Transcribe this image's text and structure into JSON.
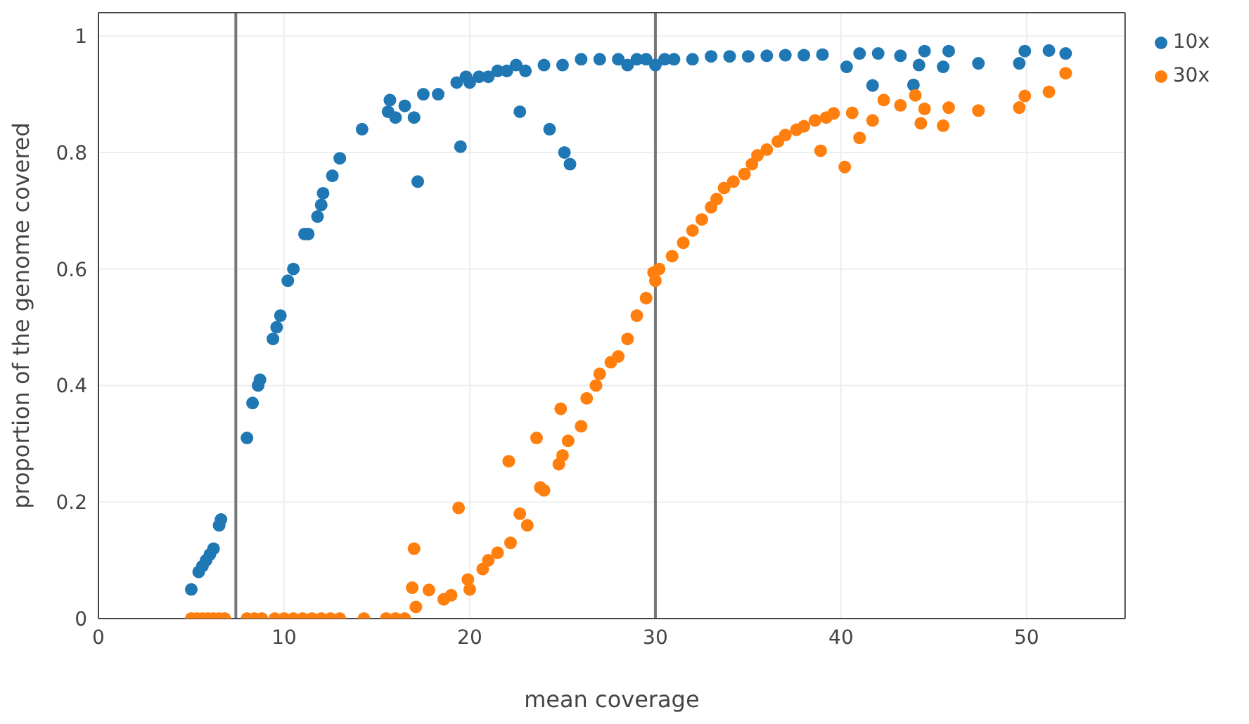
{
  "chart_data": {
    "type": "scatter",
    "xlabel": "mean coverage",
    "ylabel": "proportion of the genome covered",
    "xlim": [
      0,
      55.3
    ],
    "ylim": [
      0,
      1.04
    ],
    "xticks": [
      0,
      10,
      20,
      30,
      40,
      50
    ],
    "yticks": [
      0,
      0.2,
      0.4,
      0.6,
      0.8,
      1
    ],
    "grid": true,
    "legend": "top right",
    "marker": "circle",
    "ref_lines": [
      {
        "axis": "x",
        "value": 7.4,
        "color": "#777777"
      },
      {
        "axis": "x",
        "value": 30,
        "color": "#777777"
      }
    ],
    "series": [
      {
        "name": "10x",
        "color": "#1f77b4",
        "x": [
          5,
          5.4,
          5.6,
          5.8,
          6,
          6.2,
          6.5,
          6.6,
          8,
          8.3,
          8.6,
          8.7,
          9.4,
          9.6,
          9.8,
          10.2,
          10.5,
          11.1,
          11.3,
          11.8,
          12,
          12.1,
          12.6,
          13,
          14.2,
          15.6,
          15.7,
          16,
          16.5,
          17,
          17.2,
          17.5,
          18.3,
          19.3,
          19.5,
          19.8,
          20,
          20.5,
          21,
          21.5,
          22,
          22.5,
          22.7,
          23,
          24,
          24.3,
          25,
          25.1,
          25.4,
          26,
          27,
          28,
          28.5,
          29,
          29.5,
          30,
          30.5,
          31,
          32,
          33,
          34,
          35,
          36,
          37,
          38,
          39,
          40.3,
          41,
          41.7,
          42,
          43.2,
          43.9,
          44.2,
          44.5,
          45.5,
          45.8,
          47.4,
          49.6,
          49.9,
          51.2,
          52.1
        ],
        "values": [
          0.05,
          0.08,
          0.09,
          0.1,
          0.11,
          0.12,
          0.16,
          0.17,
          0.31,
          0.37,
          0.4,
          0.41,
          0.48,
          0.5,
          0.52,
          0.58,
          0.6,
          0.66,
          0.66,
          0.69,
          0.71,
          0.73,
          0.76,
          0.79,
          0.84,
          0.87,
          0.89,
          0.86,
          0.88,
          0.86,
          0.75,
          0.9,
          0.9,
          0.92,
          0.81,
          0.93,
          0.92,
          0.93,
          0.93,
          0.94,
          0.94,
          0.95,
          0.87,
          0.94,
          0.95,
          0.84,
          0.95,
          0.8,
          0.78,
          0.96,
          0.96,
          0.96,
          0.95,
          0.96,
          0.96,
          0.95,
          0.96,
          0.96,
          0.96,
          0.965,
          0.965,
          0.965,
          0.966,
          0.967,
          0.967,
          0.968,
          0.947,
          0.97,
          0.915,
          0.97,
          0.966,
          0.916,
          0.95,
          0.974,
          0.947,
          0.974,
          0.953,
          0.953,
          0.974,
          0.975,
          0.97
        ]
      },
      {
        "name": "30x",
        "color": "#ff7f0e",
        "x": [
          5,
          5.3,
          5.6,
          5.9,
          6.2,
          6.5,
          6.8,
          8,
          8.4,
          8.8,
          9.5,
          10,
          10.5,
          11,
          11.5,
          12,
          12.5,
          13,
          14.3,
          15.5,
          16,
          16.5,
          16.9,
          17,
          17.1,
          17.8,
          18.6,
          19,
          19.4,
          19.9,
          20,
          20.7,
          21,
          21.5,
          22.1,
          22.2,
          22.7,
          23.1,
          23.6,
          23.8,
          24,
          24.8,
          24.9,
          25,
          25.3,
          26,
          26.3,
          26.8,
          27,
          27.6,
          28,
          28.5,
          29,
          29.5,
          29.9,
          30,
          30.2,
          30.9,
          31.5,
          32,
          32.5,
          33,
          33.3,
          33.7,
          34.2,
          34.8,
          35.2,
          35.5,
          36,
          36.6,
          37,
          37.6,
          38,
          38.6,
          38.9,
          39.2,
          39.6,
          40.2,
          40.6,
          41,
          41.7,
          42.3,
          43.2,
          44,
          44.3,
          44.5,
          45.5,
          45.8,
          47.4,
          49.6,
          49.9,
          51.2,
          52.1
        ],
        "values": [
          0,
          0,
          0,
          0,
          0,
          0,
          0,
          0,
          0,
          0,
          0,
          0,
          0,
          0,
          0,
          0,
          0,
          0,
          0,
          0,
          0,
          0,
          0.053,
          0.12,
          0.02,
          0.049,
          0.033,
          0.04,
          0.19,
          0.067,
          0.05,
          0.085,
          0.1,
          0.113,
          0.27,
          0.13,
          0.18,
          0.16,
          0.31,
          0.225,
          0.22,
          0.265,
          0.36,
          0.28,
          0.305,
          0.33,
          0.378,
          0.4,
          0.42,
          0.44,
          0.45,
          0.48,
          0.52,
          0.55,
          0.594,
          0.58,
          0.6,
          0.622,
          0.645,
          0.666,
          0.685,
          0.706,
          0.72,
          0.739,
          0.75,
          0.763,
          0.78,
          0.795,
          0.805,
          0.819,
          0.83,
          0.839,
          0.845,
          0.855,
          0.803,
          0.86,
          0.867,
          0.775,
          0.868,
          0.825,
          0.855,
          0.89,
          0.881,
          0.898,
          0.85,
          0.875,
          0.846,
          0.877,
          0.872,
          0.877,
          0.897,
          0.904,
          0.936
        ]
      }
    ]
  }
}
